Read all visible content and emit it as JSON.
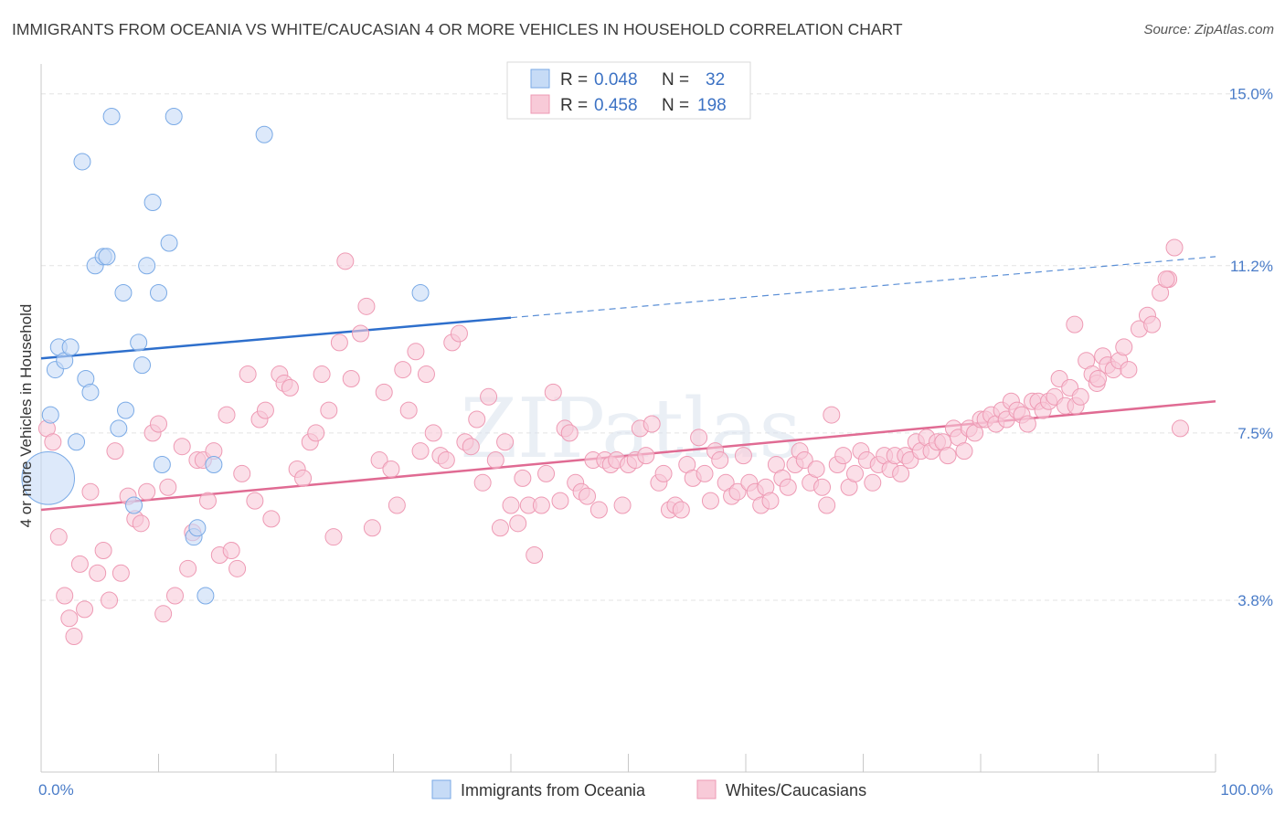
{
  "title": "IMMIGRANTS FROM OCEANIA VS WHITE/CAUCASIAN 4 OR MORE VEHICLES IN HOUSEHOLD CORRELATION CHART",
  "source": "Source: ZipAtlas.com",
  "watermark": "ZIPatlas",
  "legend": {
    "r_label": "R =",
    "n_label": "N =",
    "series": [
      {
        "r": "0.048",
        "n": "32"
      },
      {
        "r": "0.458",
        "n": "198"
      }
    ]
  },
  "chart_data": {
    "type": "scatter",
    "xlabel": "",
    "ylabel": "4 or more Vehicles in Household",
    "xlim": [
      0,
      100
    ],
    "ylim": [
      0,
      15.5
    ],
    "x_tick_labels": [
      "0.0%",
      "100.0%"
    ],
    "y_ticks": [
      {
        "value": 3.8,
        "label": "3.8%"
      },
      {
        "value": 7.5,
        "label": "7.5%"
      },
      {
        "value": 11.2,
        "label": "11.2%"
      },
      {
        "value": 15.0,
        "label": "15.0%"
      }
    ],
    "grid": true,
    "legend_position": "top-center",
    "series": [
      {
        "name": "Immigrants from Oceania",
        "color": "#7aaae6",
        "fill": "#c6dbf6",
        "trend": {
          "x0": 0,
          "y0": 9.15,
          "x1": 40,
          "y1": 10.05,
          "dash_to_x": 100,
          "dash_to_y": 11.4
        },
        "points": [
          [
            0.6,
            6.5,
            3.2
          ],
          [
            0.8,
            7.9,
            1
          ],
          [
            1.2,
            8.9,
            1
          ],
          [
            1.5,
            9.4,
            1
          ],
          [
            2.0,
            9.1,
            1
          ],
          [
            2.5,
            9.4,
            1
          ],
          [
            3.0,
            7.3,
            1
          ],
          [
            3.5,
            13.5,
            1
          ],
          [
            3.8,
            8.7,
            1
          ],
          [
            4.2,
            8.4,
            1
          ],
          [
            4.6,
            11.2,
            1
          ],
          [
            5.3,
            11.4,
            1
          ],
          [
            5.6,
            11.4,
            1
          ],
          [
            6.0,
            14.5,
            1
          ],
          [
            6.6,
            7.6,
            1
          ],
          [
            7.0,
            10.6,
            1
          ],
          [
            7.2,
            8.0,
            1
          ],
          [
            7.9,
            5.9,
            1
          ],
          [
            8.3,
            9.5,
            1
          ],
          [
            8.6,
            9.0,
            1
          ],
          [
            9.0,
            11.2,
            1
          ],
          [
            9.5,
            12.6,
            1
          ],
          [
            10.0,
            10.6,
            1
          ],
          [
            10.3,
            6.8,
            1
          ],
          [
            10.9,
            11.7,
            1
          ],
          [
            11.3,
            14.5,
            1
          ],
          [
            13.0,
            5.2,
            1
          ],
          [
            13.3,
            5.4,
            1
          ],
          [
            14.0,
            3.9,
            1
          ],
          [
            14.7,
            6.8,
            1
          ],
          [
            19.0,
            14.1,
            1
          ],
          [
            32.3,
            10.6,
            1
          ]
        ]
      },
      {
        "name": "Whites/Caucasians",
        "color": "#ee9ab4",
        "fill": "#f8cad8",
        "trend": {
          "x0": 0,
          "y0": 5.8,
          "x1": 100,
          "y1": 8.2
        },
        "points": [
          [
            0.5,
            7.6
          ],
          [
            1.0,
            7.3
          ],
          [
            1.5,
            5.2
          ],
          [
            2.0,
            3.9
          ],
          [
            2.4,
            3.4
          ],
          [
            2.8,
            3.0
          ],
          [
            3.3,
            4.6
          ],
          [
            3.7,
            3.6
          ],
          [
            4.2,
            6.2
          ],
          [
            4.8,
            4.4
          ],
          [
            5.3,
            4.9
          ],
          [
            5.8,
            3.8
          ],
          [
            6.3,
            7.1
          ],
          [
            6.8,
            4.4
          ],
          [
            7.4,
            6.1
          ],
          [
            8.0,
            5.6
          ],
          [
            8.5,
            5.5
          ],
          [
            9.0,
            6.2
          ],
          [
            9.5,
            7.5
          ],
          [
            10.0,
            7.7
          ],
          [
            10.4,
            3.5
          ],
          [
            10.8,
            6.3
          ],
          [
            11.4,
            3.9
          ],
          [
            12.0,
            7.2
          ],
          [
            12.5,
            4.5
          ],
          [
            12.9,
            5.3
          ],
          [
            13.3,
            6.9
          ],
          [
            13.8,
            6.9
          ],
          [
            14.2,
            6.0
          ],
          [
            14.7,
            7.1
          ],
          [
            15.2,
            4.8
          ],
          [
            15.8,
            7.9
          ],
          [
            16.2,
            4.9
          ],
          [
            16.7,
            4.5
          ],
          [
            17.1,
            6.6
          ],
          [
            17.6,
            8.8
          ],
          [
            18.2,
            6.0
          ],
          [
            18.6,
            7.8
          ],
          [
            19.1,
            8.0
          ],
          [
            19.6,
            5.6
          ],
          [
            20.3,
            8.8
          ],
          [
            20.7,
            8.6
          ],
          [
            21.2,
            8.5
          ],
          [
            21.8,
            6.7
          ],
          [
            22.3,
            6.5
          ],
          [
            22.9,
            7.3
          ],
          [
            23.4,
            7.5
          ],
          [
            23.9,
            8.8
          ],
          [
            24.5,
            8.0
          ],
          [
            24.9,
            5.2
          ],
          [
            25.4,
            9.5
          ],
          [
            25.9,
            11.3
          ],
          [
            26.4,
            8.7
          ],
          [
            27.2,
            9.7
          ],
          [
            27.7,
            10.3
          ],
          [
            28.2,
            5.4
          ],
          [
            28.8,
            6.9
          ],
          [
            29.2,
            8.4
          ],
          [
            29.8,
            6.7
          ],
          [
            30.3,
            5.9
          ],
          [
            30.8,
            8.9
          ],
          [
            31.3,
            8.0
          ],
          [
            31.9,
            9.3
          ],
          [
            32.3,
            7.1
          ],
          [
            32.8,
            8.8
          ],
          [
            33.4,
            7.5
          ],
          [
            34.0,
            7.0
          ],
          [
            34.5,
            6.9
          ],
          [
            35.0,
            9.5
          ],
          [
            35.6,
            9.7
          ],
          [
            36.1,
            7.3
          ],
          [
            36.6,
            7.2
          ],
          [
            37.1,
            7.8
          ],
          [
            37.6,
            6.4
          ],
          [
            38.1,
            8.3
          ],
          [
            38.7,
            6.9
          ],
          [
            39.1,
            5.4
          ],
          [
            39.5,
            7.3
          ],
          [
            40.0,
            5.9
          ],
          [
            40.6,
            5.5
          ],
          [
            41.0,
            6.5
          ],
          [
            41.5,
            5.9
          ],
          [
            42.0,
            4.8
          ],
          [
            42.6,
            5.9
          ],
          [
            43.0,
            6.6
          ],
          [
            43.6,
            8.4
          ],
          [
            44.2,
            6.0
          ],
          [
            44.6,
            7.6
          ],
          [
            45.0,
            7.5
          ],
          [
            45.5,
            6.4
          ],
          [
            46.0,
            6.2
          ],
          [
            46.5,
            6.1
          ],
          [
            47.0,
            6.9
          ],
          [
            47.5,
            5.8
          ],
          [
            48.0,
            6.9
          ],
          [
            48.5,
            6.8
          ],
          [
            49.0,
            6.9
          ],
          [
            49.5,
            5.9
          ],
          [
            50.0,
            6.8
          ],
          [
            50.6,
            6.9
          ],
          [
            51.0,
            7.6
          ],
          [
            51.5,
            7.0
          ],
          [
            52.0,
            7.7
          ],
          [
            52.6,
            6.4
          ],
          [
            53.0,
            6.6
          ],
          [
            53.5,
            5.8
          ],
          [
            54.0,
            5.9
          ],
          [
            54.5,
            5.8
          ],
          [
            55.0,
            6.8
          ],
          [
            55.5,
            6.5
          ],
          [
            56.0,
            7.4
          ],
          [
            56.5,
            6.6
          ],
          [
            57.0,
            6.0
          ],
          [
            57.4,
            7.1
          ],
          [
            57.8,
            6.9
          ],
          [
            58.3,
            6.4
          ],
          [
            58.8,
            6.1
          ],
          [
            59.3,
            6.2
          ],
          [
            59.8,
            7.0
          ],
          [
            60.3,
            6.4
          ],
          [
            60.8,
            6.2
          ],
          [
            61.3,
            5.9
          ],
          [
            61.7,
            6.3
          ],
          [
            62.1,
            6.0
          ],
          [
            62.6,
            6.8
          ],
          [
            63.1,
            6.5
          ],
          [
            63.6,
            6.3
          ],
          [
            64.2,
            6.8
          ],
          [
            64.6,
            7.1
          ],
          [
            65.0,
            6.9
          ],
          [
            65.5,
            6.4
          ],
          [
            66.0,
            6.7
          ],
          [
            66.5,
            6.3
          ],
          [
            66.9,
            5.9
          ],
          [
            67.3,
            7.9
          ],
          [
            67.8,
            6.8
          ],
          [
            68.3,
            7.0
          ],
          [
            68.8,
            6.3
          ],
          [
            69.3,
            6.6
          ],
          [
            69.8,
            7.1
          ],
          [
            70.3,
            6.9
          ],
          [
            70.8,
            6.4
          ],
          [
            71.3,
            6.8
          ],
          [
            71.8,
            7.0
          ],
          [
            72.3,
            6.7
          ],
          [
            72.7,
            7.0
          ],
          [
            73.2,
            6.6
          ],
          [
            73.6,
            7.0
          ],
          [
            74.0,
            6.9
          ],
          [
            74.5,
            7.3
          ],
          [
            74.9,
            7.1
          ],
          [
            75.4,
            7.4
          ],
          [
            75.8,
            7.1
          ],
          [
            76.3,
            7.3
          ],
          [
            76.8,
            7.3
          ],
          [
            77.2,
            7.0
          ],
          [
            77.7,
            7.6
          ],
          [
            78.1,
            7.4
          ],
          [
            78.6,
            7.1
          ],
          [
            79.0,
            7.6
          ],
          [
            79.5,
            7.5
          ],
          [
            80.0,
            7.8
          ],
          [
            80.4,
            7.8
          ],
          [
            80.9,
            7.9
          ],
          [
            81.3,
            7.7
          ],
          [
            81.8,
            8.0
          ],
          [
            82.2,
            7.8
          ],
          [
            82.6,
            8.2
          ],
          [
            83.1,
            8.0
          ],
          [
            83.5,
            7.9
          ],
          [
            84.0,
            7.7
          ],
          [
            84.4,
            8.2
          ],
          [
            84.9,
            8.2
          ],
          [
            85.3,
            8.0
          ],
          [
            85.8,
            8.2
          ],
          [
            86.3,
            8.3
          ],
          [
            86.7,
            8.7
          ],
          [
            87.2,
            8.1
          ],
          [
            87.6,
            8.5
          ],
          [
            88.1,
            8.1
          ],
          [
            88.5,
            8.3
          ],
          [
            89.0,
            9.1
          ],
          [
            89.5,
            8.8
          ],
          [
            89.9,
            8.6
          ],
          [
            90.4,
            9.2
          ],
          [
            90.8,
            9.0
          ],
          [
            91.3,
            8.9
          ],
          [
            91.8,
            9.1
          ],
          [
            92.2,
            9.4
          ],
          [
            92.6,
            8.9
          ],
          [
            93.5,
            9.8
          ],
          [
            94.2,
            10.1
          ],
          [
            94.6,
            9.9
          ],
          [
            95.3,
            10.6
          ],
          [
            96.0,
            10.9
          ],
          [
            96.5,
            11.6
          ],
          [
            95.8,
            10.9
          ],
          [
            97.0,
            7.6
          ],
          [
            90.0,
            8.7
          ],
          [
            88.0,
            9.9
          ]
        ]
      }
    ]
  },
  "bottom_legend": [
    "Immigrants from Oceania",
    "Whites/Caucasians"
  ]
}
